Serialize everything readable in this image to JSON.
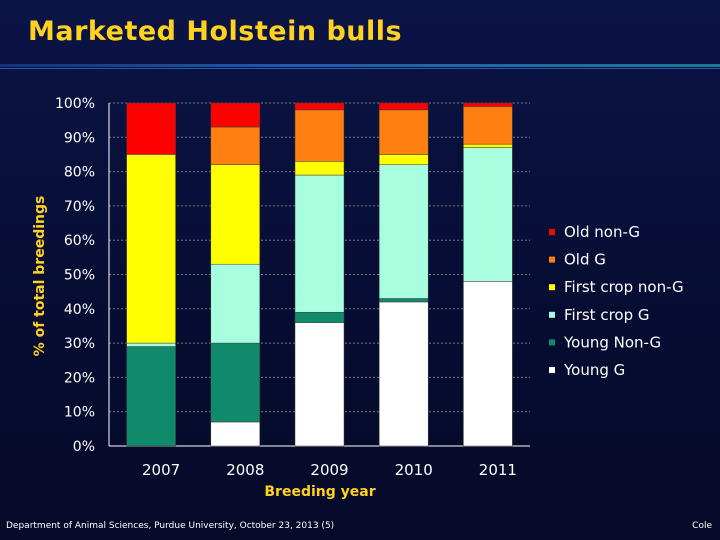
{
  "slide": {
    "title": "Marketed Holstein bulls",
    "footer_left": "Department of Animal Sciences, Purdue University, October 23, 2013 (5)",
    "footer_right": "Cole"
  },
  "colors": {
    "title": "#ffd21f",
    "text": "#ffffff",
    "gridline": "#7a7a7a"
  },
  "chart_data": {
    "type": "bar",
    "stacked": true,
    "categories": [
      "2007",
      "2008",
      "2009",
      "2010",
      "2011"
    ],
    "xlabel": "Breeding year",
    "ylabel": "% of total breedings",
    "ylim": [
      0,
      100
    ],
    "yticks": [
      "0%",
      "10%",
      "20%",
      "30%",
      "40%",
      "50%",
      "60%",
      "70%",
      "80%",
      "90%",
      "100%"
    ],
    "grid": true,
    "legend_position": "right",
    "series": [
      {
        "name": "Young G",
        "color": "#ffffff",
        "values": [
          0,
          7,
          36,
          42,
          48
        ]
      },
      {
        "name": "Young Non-G",
        "color": "#0f8a6a",
        "values": [
          29,
          23,
          3,
          1,
          0
        ]
      },
      {
        "name": "First crop G",
        "color": "#a8ffe0",
        "values": [
          1,
          23,
          40,
          39,
          39
        ]
      },
      {
        "name": "First crop non-G",
        "color": "#ffff00",
        "values": [
          55,
          29,
          4,
          3,
          1
        ]
      },
      {
        "name": "Old G",
        "color": "#ff7f10",
        "values": [
          0,
          11,
          15,
          13,
          11
        ]
      },
      {
        "name": "Old non-G",
        "color": "#ff0000",
        "values": [
          15,
          7,
          2,
          2,
          1
        ]
      }
    ]
  }
}
